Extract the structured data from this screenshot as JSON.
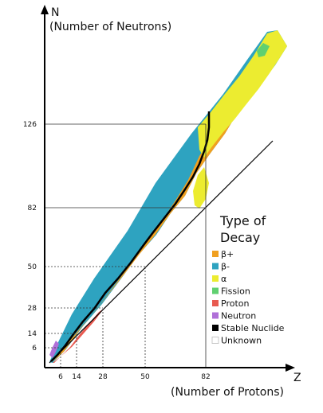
{
  "chart_data": {
    "type": "heatmap",
    "y_axis": {
      "letter": "N",
      "label": "(Number of Neutrons)"
    },
    "x_axis": {
      "letter": "Z",
      "label": "(Number of Protons)"
    },
    "magic_ticks_x": [
      "6",
      "14",
      "28",
      "50",
      "82"
    ],
    "magic_ticks_y": [
      "6",
      "14",
      "28",
      "50",
      "82",
      "126"
    ],
    "magic_values_x": [
      6,
      14,
      28,
      50,
      82
    ],
    "magic_values_y": [
      6,
      14,
      28,
      50,
      82,
      126
    ],
    "xlim": [
      0,
      118
    ],
    "ylim": [
      0,
      178
    ],
    "legend": {
      "title_line1": "Type of",
      "title_line2": "Decay",
      "entries": [
        {
          "key": "beta_plus",
          "label": "β+",
          "color": "#f0a020"
        },
        {
          "key": "beta_minus",
          "label": "β-",
          "color": "#2ea3c0"
        },
        {
          "key": "alpha",
          "label": "α",
          "color": "#ecec30"
        },
        {
          "key": "fission",
          "label": "Fission",
          "color": "#60d070"
        },
        {
          "key": "proton",
          "label": "Proton",
          "color": "#e85a50"
        },
        {
          "key": "neutron",
          "label": "Neutron",
          "color": "#b070d8"
        },
        {
          "key": "stable",
          "label": "Stable Nuclide",
          "color": "#000000"
        },
        {
          "key": "unknown",
          "label": "Unknown",
          "color": "#ffffff"
        }
      ]
    }
  }
}
